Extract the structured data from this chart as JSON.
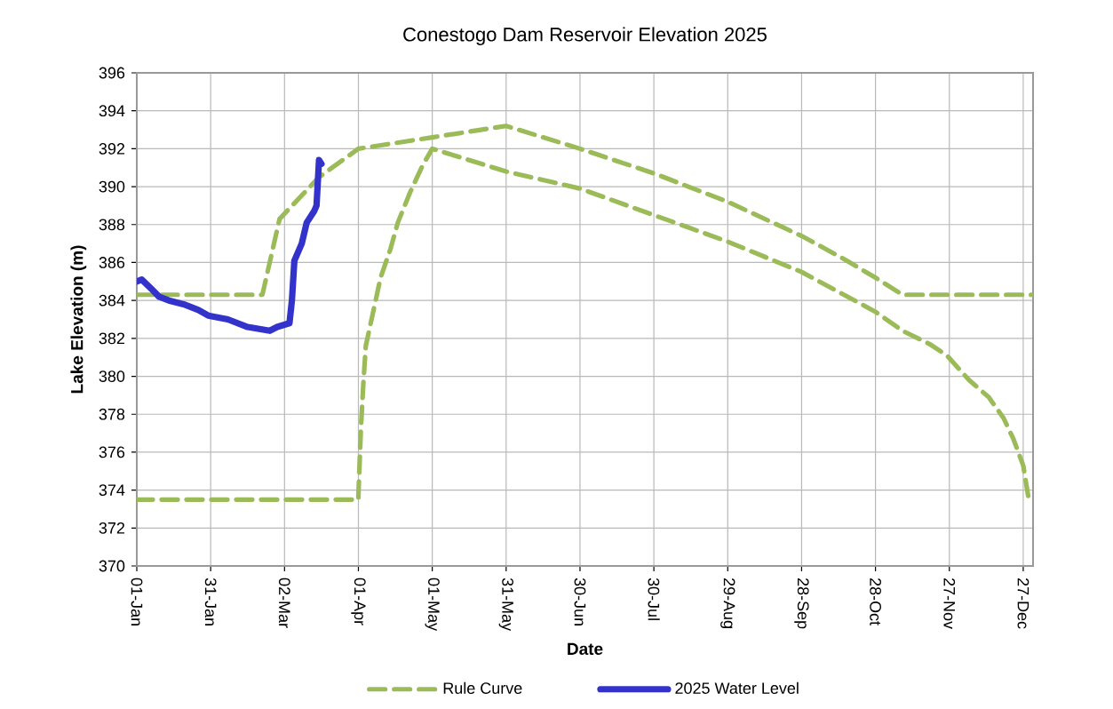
{
  "chart_data": {
    "type": "line",
    "title": "Conestogo Dam Reservoir Elevation 2025",
    "xlabel": "Date",
    "ylabel": "Lake Elevation (m)",
    "xlim": [
      "2025-01-01",
      "2025-12-31"
    ],
    "xticks": [
      {
        "value": "2025-01-01",
        "label": "01-Jan"
      },
      {
        "value": "2025-01-31",
        "label": "31-Jan"
      },
      {
        "value": "2025-03-02",
        "label": "02-Mar"
      },
      {
        "value": "2025-04-01",
        "label": "01-Apr"
      },
      {
        "value": "2025-05-01",
        "label": "01-May"
      },
      {
        "value": "2025-05-31",
        "label": "31-May"
      },
      {
        "value": "2025-06-30",
        "label": "30-Jun"
      },
      {
        "value": "2025-07-30",
        "label": "30-Jul"
      },
      {
        "value": "2025-08-29",
        "label": "29-Aug"
      },
      {
        "value": "2025-09-28",
        "label": "28-Sep"
      },
      {
        "value": "2025-10-28",
        "label": "28-Oct"
      },
      {
        "value": "2025-11-27",
        "label": "27-Nov"
      },
      {
        "value": "2025-12-27",
        "label": "27-Dec"
      }
    ],
    "ylim": [
      370,
      396
    ],
    "yticks": [
      370,
      372,
      374,
      376,
      378,
      380,
      382,
      384,
      386,
      388,
      390,
      392,
      394,
      396
    ],
    "grid": true,
    "legend": "bottom",
    "series": [
      {
        "name": "Rule Curve",
        "color": "#9bbb59",
        "line_style": "dashed",
        "x": [
          "2025-01-01",
          "2025-02-21",
          "2025-02-28",
          "2025-03-16",
          "2025-04-01",
          "2025-05-01",
          "2025-05-31",
          "2025-06-30",
          "2025-07-30",
          "2025-08-29",
          "2025-09-28",
          "2025-10-15",
          "2025-10-28",
          "2025-11-08",
          "2025-12-31"
        ],
        "values": [
          384.3,
          384.3,
          388.3,
          390.5,
          392.0,
          392.6,
          393.2,
          392.0,
          390.7,
          389.2,
          387.4,
          386.2,
          385.2,
          384.3,
          384.3
        ]
      },
      {
        "color": "#9bbb59",
        "line_style": "dashed",
        "x": [
          "2025-01-01",
          "2025-04-01",
          "2025-04-01",
          "2025-04-02",
          "2025-04-03",
          "2025-04-04",
          "2025-04-07",
          "2025-04-10",
          "2025-04-14",
          "2025-04-17",
          "2025-04-22",
          "2025-04-27",
          "2025-05-01",
          "2025-05-31",
          "2025-06-30",
          "2025-07-30",
          "2025-08-29",
          "2025-09-28",
          "2025-10-28",
          "2025-11-08",
          "2025-11-19",
          "2025-11-26",
          "2025-12-05",
          "2025-12-13",
          "2025-12-19",
          "2025-12-23",
          "2025-12-27",
          "2025-12-29",
          "2025-12-31"
        ],
        "values": [
          373.5,
          373.5,
          373.7,
          377.2,
          379.6,
          381.6,
          383.4,
          385.2,
          386.7,
          388.1,
          389.7,
          391.1,
          392.0,
          390.8,
          389.9,
          388.5,
          387.1,
          385.5,
          383.4,
          382.4,
          381.7,
          381.1,
          379.8,
          378.9,
          377.8,
          376.7,
          375.3,
          373.7,
          373.5
        ]
      },
      {
        "name": "2025 Water Level",
        "color": "#3333cc",
        "line_style": "solid",
        "x": [
          "2025-01-01",
          "2025-01-03",
          "2025-01-07",
          "2025-01-10",
          "2025-01-14",
          "2025-01-20",
          "2025-01-26",
          "2025-01-30",
          "2025-02-07",
          "2025-02-15",
          "2025-02-24",
          "2025-02-27",
          "2025-03-04",
          "2025-03-05",
          "2025-03-06",
          "2025-03-09",
          "2025-03-11",
          "2025-03-14",
          "2025-03-15",
          "2025-03-16",
          "2025-03-17"
        ],
        "values": [
          385.0,
          385.1,
          384.6,
          384.2,
          384.0,
          383.8,
          383.5,
          383.2,
          383.0,
          382.6,
          382.4,
          382.6,
          382.8,
          384.0,
          386.1,
          387.0,
          388.1,
          388.7,
          389.0,
          391.4,
          391.2
        ]
      }
    ]
  }
}
